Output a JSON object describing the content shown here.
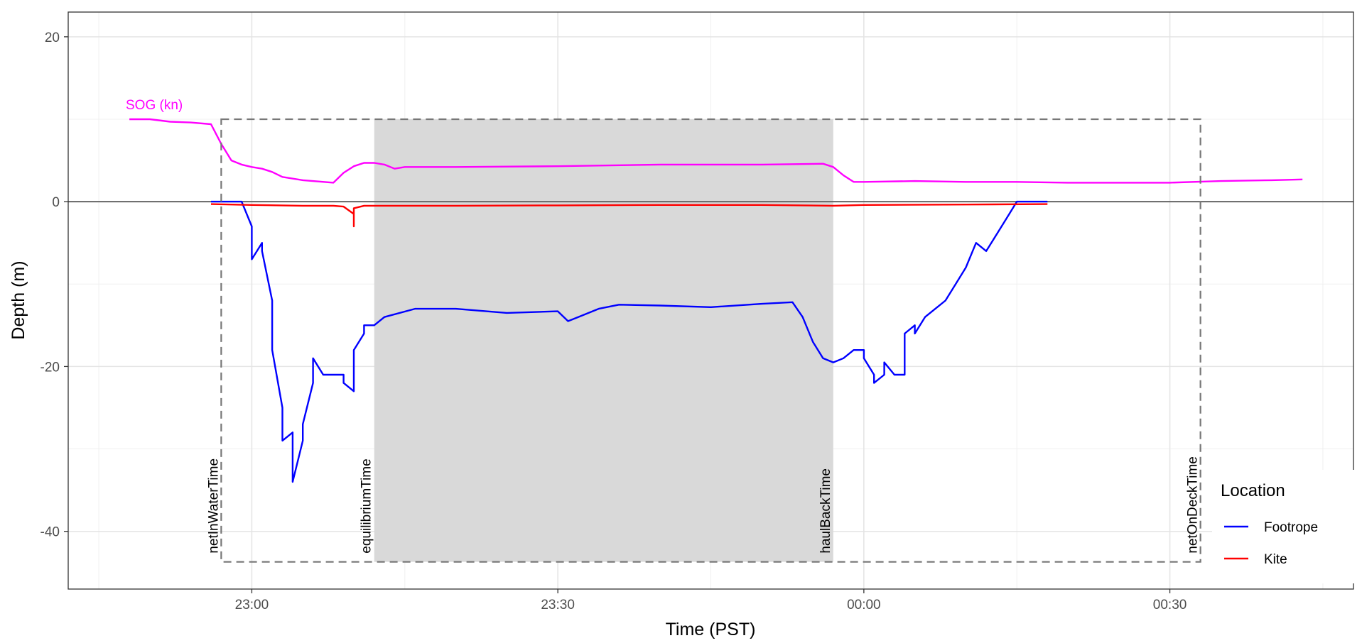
{
  "chart_data": {
    "type": "line",
    "title": "",
    "xlabel": "Time (PST)",
    "ylabel": "Depth (m)",
    "x_unit": "time of day (PST)",
    "xlim": [
      "22:42",
      "00:48"
    ],
    "ylim": [
      -47,
      23
    ],
    "x_ticks": [
      "23:00",
      "23:30",
      "00:00",
      "00:30"
    ],
    "y_ticks": [
      20,
      0,
      -20,
      -40
    ],
    "y_tick_labels": [
      "20",
      "0",
      "-20",
      "-40"
    ],
    "grid": true,
    "legend": {
      "title": "Location",
      "position": "bottom-right",
      "entries": [
        {
          "name": "Footrope",
          "color": "#0000ff"
        },
        {
          "name": "Kite",
          "color": "#ff0000"
        }
      ]
    },
    "sog_label": {
      "text": "SOG (kn)",
      "color": "#ff00ff"
    },
    "shaded_region": {
      "x_start": "23:12",
      "x_end": "23:57",
      "color": "#d9d9d9"
    },
    "event_box": {
      "x_start": "22:57",
      "x_end": "00:33",
      "y_top": 10,
      "y_bottom": -43.7
    },
    "events": [
      {
        "label": "netInWaterTime",
        "time": "22:57"
      },
      {
        "label": "equilibriumTime",
        "time": "23:12"
      },
      {
        "label": "haulBackTime",
        "time": "23:57"
      },
      {
        "label": "netOnDeckTime",
        "time": "00:33"
      }
    ],
    "series": [
      {
        "name": "Footrope",
        "color": "#0000ff",
        "x": [
          "22:56",
          "22:59",
          "23:00",
          "23:00",
          "23:01",
          "23:01",
          "23:02",
          "23:02",
          "23:03",
          "23:03",
          "23:04",
          "23:04",
          "23:04",
          "23:05",
          "23:05",
          "23:06",
          "23:06",
          "23:06",
          "23:07",
          "23:08",
          "23:09",
          "23:09",
          "23:10",
          "23:10",
          "23:11",
          "23:11",
          "23:12",
          "23:13",
          "23:16",
          "23:20",
          "23:25",
          "23:30",
          "23:31",
          "23:32",
          "23:34",
          "23:36",
          "23:40",
          "23:45",
          "23:50",
          "23:53",
          "23:54",
          "23:55",
          "23:56",
          "23:57",
          "23:58",
          "23:59",
          "00:00",
          "00:00",
          "00:01",
          "00:01",
          "00:02",
          "00:02",
          "00:03",
          "00:03",
          "00:04",
          "00:04",
          "00:05",
          "00:05",
          "00:06",
          "00:07",
          "00:08",
          "00:09",
          "00:10",
          "00:11",
          "00:12",
          "00:13",
          "00:14",
          "00:15",
          "00:16",
          "00:18"
        ],
        "y": [
          0,
          0,
          -3,
          -7,
          -5,
          -6,
          -12,
          -18,
          -25,
          -29,
          -28,
          -31,
          -34,
          -29,
          -27,
          -22,
          -20,
          -19,
          -21,
          -21,
          -21,
          -22,
          -23,
          -18,
          -16,
          -15,
          -15,
          -14,
          -13,
          -13,
          -13.5,
          -13.3,
          -14.5,
          -14,
          -13,
          -12.5,
          -12.6,
          -12.8,
          -12.4,
          -12.2,
          -14,
          -17,
          -19,
          -19.5,
          -19,
          -18,
          -18,
          -19,
          -21,
          -22,
          -21,
          -19.5,
          -21,
          -21,
          -21,
          -16,
          -15,
          -16,
          -14,
          -13,
          -12,
          -10,
          -8,
          -5,
          -6,
          -4,
          -2,
          0,
          0,
          0
        ]
      },
      {
        "name": "Kite",
        "color": "#ff0000",
        "x": [
          "22:56",
          "23:00",
          "23:05",
          "23:08",
          "23:09",
          "23:10",
          "23:10",
          "23:10",
          "23:11",
          "23:12",
          "23:20",
          "23:30",
          "23:40",
          "23:50",
          "23:57",
          "00:00",
          "00:10",
          "00:18"
        ],
        "y": [
          -0.3,
          -0.4,
          -0.5,
          -0.5,
          -0.6,
          -1.5,
          -3,
          -0.8,
          -0.5,
          -0.5,
          -0.5,
          -0.45,
          -0.4,
          -0.4,
          -0.5,
          -0.4,
          -0.35,
          -0.3
        ]
      },
      {
        "name": "SOG (kn)",
        "color": "#ff00ff",
        "x": [
          "22:48",
          "22:50",
          "22:52",
          "22:54",
          "22:56",
          "22:57",
          "22:58",
          "22:59",
          "23:00",
          "23:01",
          "23:02",
          "23:03",
          "23:05",
          "23:08",
          "23:09",
          "23:10",
          "23:11",
          "23:12",
          "23:13",
          "23:14",
          "23:15",
          "23:20",
          "23:30",
          "23:40",
          "23:50",
          "23:56",
          "23:57",
          "23:58",
          "23:59",
          "00:00",
          "00:05",
          "00:10",
          "00:15",
          "00:20",
          "00:25",
          "00:30",
          "00:35",
          "00:40",
          "00:43"
        ],
        "y": [
          10,
          10,
          9.7,
          9.6,
          9.4,
          7,
          5,
          4.5,
          4.2,
          4,
          3.6,
          3,
          2.6,
          2.3,
          3.5,
          4.3,
          4.7,
          4.7,
          4.5,
          4,
          4.2,
          4.2,
          4.3,
          4.5,
          4.5,
          4.6,
          4.2,
          3.2,
          2.4,
          2.4,
          2.5,
          2.4,
          2.4,
          2.3,
          2.3,
          2.3,
          2.5,
          2.6,
          2.7
        ]
      }
    ]
  }
}
